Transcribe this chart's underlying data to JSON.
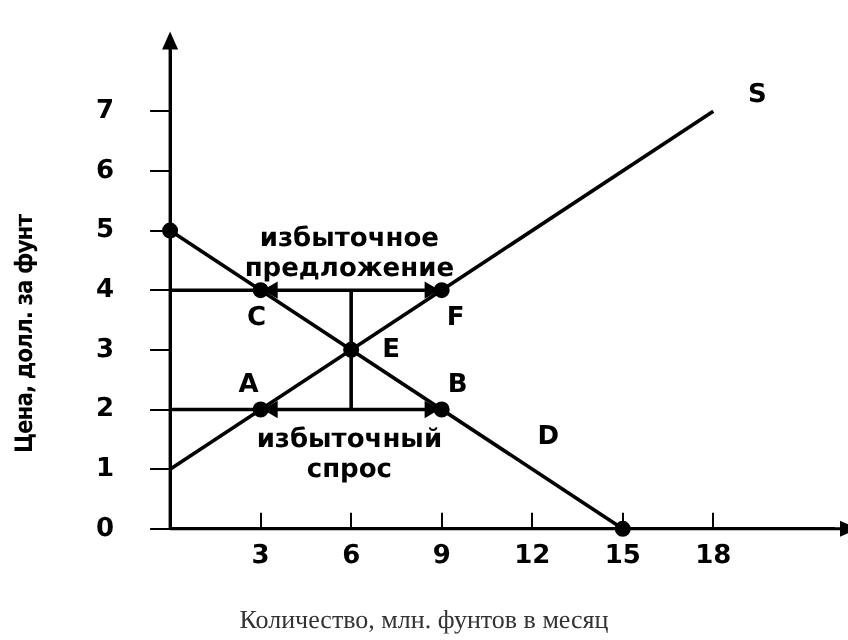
{
  "chart_data": {
    "type": "line",
    "xlabel": "Количество, млн. фунтов в месяц",
    "ylabel": "Цена, долл. за фунт",
    "xlim": [
      0,
      22
    ],
    "ylim": [
      0,
      8
    ],
    "xticks": [
      3,
      6,
      9,
      12,
      15,
      18
    ],
    "yticks": [
      0,
      1,
      2,
      3,
      4,
      5,
      6,
      7
    ],
    "grid": false,
    "legend": false,
    "series": [
      {
        "type": "line",
        "x": [
          0,
          15
        ],
        "values": [
          5,
          0
        ],
        "color": "#000000",
        "marker": "none"
      },
      {
        "type": "line",
        "x": [
          0,
          18
        ],
        "values": [
          1,
          7
        ],
        "color": "#000000",
        "marker": "none"
      },
      {
        "type": "line",
        "x": [
          0,
          9
        ],
        "values": [
          4,
          4
        ],
        "color": "#000000",
        "marker": "none"
      },
      {
        "type": "line",
        "x": [
          0,
          9
        ],
        "values": [
          2,
          2
        ],
        "color": "#000000",
        "marker": "none"
      },
      {
        "type": "line",
        "x": [
          6,
          6
        ],
        "values": [
          2,
          4
        ],
        "color": "#000000",
        "marker": "none"
      },
      {
        "type": "scatter",
        "x": [
          0,
          3,
          9,
          6,
          3,
          9,
          15
        ],
        "values": [
          5,
          4,
          4,
          3,
          2,
          2,
          0
        ],
        "color": "#000000",
        "marker": "circle"
      },
      {
        "type": "scatter",
        "x": [
          3.4,
          8.6
        ],
        "values": [
          4,
          4
        ],
        "color": "#000000",
        "marker": "triangle"
      },
      {
        "type": "scatter",
        "x": [
          3.4,
          8.6
        ],
        "values": [
          2,
          2
        ],
        "color": "#000000",
        "marker": "triangle"
      }
    ],
    "annotations": [
      "избыточное предложение",
      "избыточный спрос",
      {
        "text": "A",
        "x": 3,
        "y": 2
      },
      {
        "text": "B",
        "x": 9,
        "y": 2
      },
      {
        "text": "C",
        "x": 3,
        "y": 4
      },
      {
        "text": "F",
        "x": 9,
        "y": 4
      },
      {
        "text": "E",
        "x": 6,
        "y": 3
      },
      {
        "text": "D",
        "x": 12,
        "y": 1
      },
      {
        "text": "S",
        "x": 18,
        "y": 7
      }
    ]
  }
}
